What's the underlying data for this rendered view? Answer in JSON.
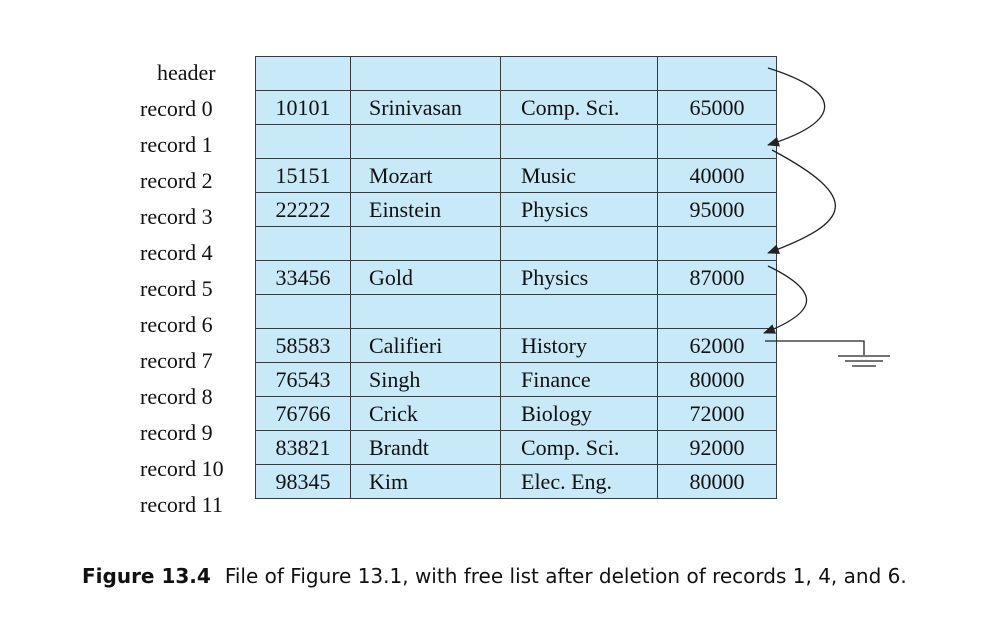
{
  "figure": {
    "caption_label": "Figure 13.4",
    "caption_text": "File of Figure 13.1, with free list after deletion of records 1, 4, and 6."
  },
  "rows": [
    {
      "label": "header",
      "id": "",
      "name": "",
      "dept": "",
      "salary": ""
    },
    {
      "label": "record 0",
      "id": "10101",
      "name": "Srinivasan",
      "dept": "Comp. Sci.",
      "salary": "65000"
    },
    {
      "label": "record 1",
      "id": "",
      "name": "",
      "dept": "",
      "salary": ""
    },
    {
      "label": "record 2",
      "id": "15151",
      "name": "Mozart",
      "dept": "Music",
      "salary": "40000"
    },
    {
      "label": "record 3",
      "id": "22222",
      "name": "Einstein",
      "dept": "Physics",
      "salary": "95000"
    },
    {
      "label": "record 4",
      "id": "",
      "name": "",
      "dept": "",
      "salary": ""
    },
    {
      "label": "record 5",
      "id": "33456",
      "name": "Gold",
      "dept": "Physics",
      "salary": "87000"
    },
    {
      "label": "record 6",
      "id": "",
      "name": "",
      "dept": "",
      "salary": ""
    },
    {
      "label": "record 7",
      "id": "58583",
      "name": "Califieri",
      "dept": "History",
      "salary": "62000"
    },
    {
      "label": "record 8",
      "id": "76543",
      "name": "Singh",
      "dept": "Finance",
      "salary": "80000"
    },
    {
      "label": "record 9",
      "id": "76766",
      "name": "Crick",
      "dept": "Biology",
      "salary": "72000"
    },
    {
      "label": "record 10",
      "id": "83821",
      "name": "Brandt",
      "dept": "Comp. Sci.",
      "salary": "92000"
    },
    {
      "label": "record 11",
      "id": "98345",
      "name": "Kim",
      "dept": "Elec. Eng.",
      "salary": "80000"
    }
  ],
  "free_list": {
    "links": [
      {
        "from": "header",
        "to": "record 1"
      },
      {
        "from": "record 1",
        "to": "record 4"
      },
      {
        "from": "record 4",
        "to": "record 6"
      }
    ],
    "terminator": "record 6",
    "terminator_symbol": "ground-icon",
    "line_color": "#222222"
  },
  "colors": {
    "cell_fill": "#c7e9f8",
    "grid_line": "#3a3a3a"
  }
}
